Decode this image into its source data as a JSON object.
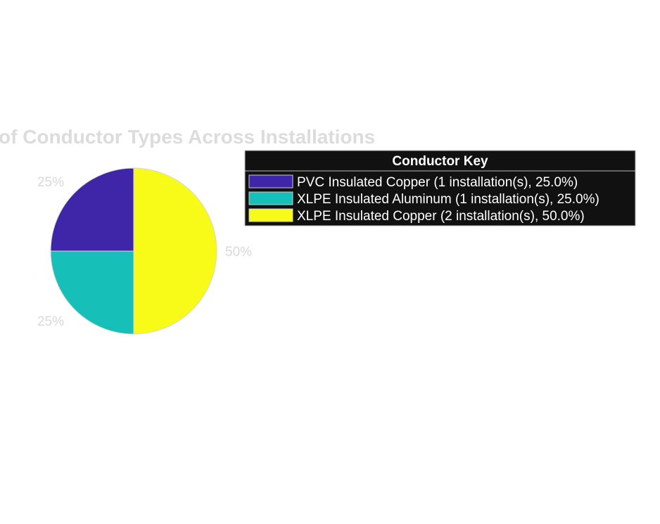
{
  "chart_data": {
    "type": "pie",
    "title": "of Conductor Types Across Installations",
    "categories": [
      "PVC Insulated Copper",
      "XLPE Insulated Aluminum",
      "XLPE Insulated Copper"
    ],
    "values": [
      1,
      1,
      2
    ],
    "percent_labels": [
      "25%",
      "25%",
      "50%"
    ],
    "colors": [
      "#3f25a8",
      "#16bfb8",
      "#f8fa17"
    ],
    "legend": {
      "title": "Conductor Key",
      "placement": "right",
      "entries": [
        "PVC Insulated Copper (1 installation(s), 25.0%)",
        "XLPE Insulated Aluminum (1 installation(s), 25.0%)",
        "XLPE Insulated Copper (2 installation(s), 50.0%)"
      ]
    }
  }
}
